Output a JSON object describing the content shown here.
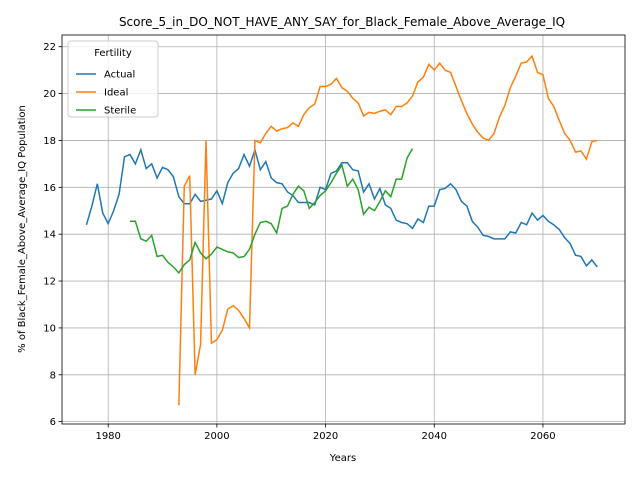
{
  "chart_data": {
    "type": "line",
    "title": "Score_5_in_DO_NOT_HAVE_ANY_SAY_for_Black_Female_Above_Average_IQ",
    "xlabel": "Years",
    "ylabel": "% of Black_Female_Above_Average_IQ Population",
    "legend_title": "Fertility",
    "legend": "upper left",
    "grid": true,
    "xlim": [
      1971.5,
      2075.1
    ],
    "ylim": [
      5.9,
      22.5
    ],
    "xticks": [
      1980,
      2000,
      2020,
      2040,
      2060
    ],
    "yticks": [
      6,
      8,
      10,
      12,
      14,
      16,
      18,
      20,
      22
    ],
    "x": [
      1976,
      1977,
      1978,
      1979,
      1980,
      1981,
      1982,
      1983,
      1984,
      1985,
      1986,
      1987,
      1988,
      1989,
      1990,
      1991,
      1992,
      1993,
      1994,
      1995,
      1996,
      1997,
      1998,
      1999,
      2000,
      2001,
      2002,
      2003,
      2004,
      2005,
      2006,
      2007,
      2008,
      2009,
      2010,
      2011,
      2012,
      2013,
      2014,
      2015,
      2016,
      2017,
      2018,
      2019,
      2020,
      2021,
      2022,
      2023,
      2024,
      2025,
      2026,
      2027,
      2028,
      2029,
      2030,
      2031,
      2032,
      2033,
      2034,
      2035,
      2036,
      2037,
      2038,
      2039,
      2040,
      2041,
      2042,
      2043,
      2044,
      2045,
      2046,
      2047,
      2048,
      2049,
      2050,
      2051,
      2052,
      2053,
      2054,
      2055,
      2056,
      2057,
      2058,
      2059,
      2060,
      2061,
      2062,
      2063,
      2064,
      2065,
      2066,
      2067,
      2068,
      2069,
      2070
    ],
    "series": [
      {
        "name": "Actual",
        "color": "#1f77b4",
        "values": [
          14.4,
          15.2,
          16.15,
          14.9,
          14.45,
          15.0,
          15.7,
          17.3,
          17.4,
          17.0,
          17.6,
          16.8,
          17.0,
          16.4,
          16.85,
          16.75,
          16.45,
          15.6,
          15.3,
          15.3,
          15.7,
          15.4,
          15.45,
          15.5,
          15.85,
          15.3,
          16.2,
          16.6,
          16.8,
          17.4,
          16.9,
          17.6,
          16.75,
          17.1,
          16.4,
          16.2,
          16.15,
          15.8,
          15.65,
          15.35,
          15.35,
          15.35,
          15.25,
          16.0,
          15.9,
          16.6,
          16.7,
          17.05,
          17.05,
          16.75,
          16.7,
          15.8,
          16.15,
          15.5,
          15.95,
          15.25,
          15.1,
          14.6,
          14.5,
          14.45,
          14.25,
          14.65,
          14.5,
          15.2,
          15.2,
          15.9,
          15.95,
          16.15,
          15.9,
          15.4,
          15.2,
          14.55,
          14.3,
          13.95,
          13.9,
          13.8,
          13.8,
          13.8,
          14.1,
          14.05,
          14.5,
          14.4,
          14.9,
          14.6,
          14.8,
          14.55,
          14.4,
          14.2,
          13.85,
          13.6,
          13.1,
          13.05,
          12.65,
          12.9,
          12.6
        ]
      },
      {
        "name": "Ideal",
        "color": "#ff7f0e",
        "values": [
          null,
          null,
          null,
          null,
          null,
          null,
          null,
          null,
          null,
          null,
          null,
          null,
          null,
          null,
          null,
          null,
          null,
          6.7,
          16.05,
          16.5,
          8.0,
          9.3,
          18.0,
          9.35,
          9.5,
          9.9,
          10.8,
          10.95,
          10.75,
          10.4,
          10.0,
          18.0,
          17.9,
          18.3,
          18.6,
          18.4,
          18.5,
          18.55,
          18.75,
          18.6,
          19.1,
          19.4,
          19.55,
          20.3,
          20.3,
          20.4,
          20.65,
          20.25,
          20.1,
          19.8,
          19.6,
          19.05,
          19.2,
          19.15,
          19.25,
          19.3,
          19.1,
          19.45,
          19.45,
          19.6,
          19.9,
          20.5,
          20.7,
          21.25,
          21.0,
          21.3,
          21.0,
          20.9,
          20.3,
          19.7,
          19.15,
          18.7,
          18.35,
          18.1,
          18.0,
          18.3,
          19.0,
          19.5,
          20.25,
          20.75,
          21.3,
          21.35,
          21.6,
          20.9,
          20.8,
          19.8,
          19.45,
          18.85,
          18.3,
          18.0,
          17.5,
          17.55,
          17.2,
          17.95,
          18.0
        ]
      },
      {
        "name": "Sterile",
        "color": "#2ca02c",
        "values": [
          null,
          null,
          null,
          null,
          null,
          null,
          null,
          null,
          14.55,
          14.55,
          13.8,
          13.7,
          13.95,
          13.05,
          13.1,
          12.8,
          12.6,
          12.35,
          12.7,
          12.9,
          13.65,
          13.2,
          12.95,
          13.15,
          13.45,
          13.35,
          13.25,
          13.2,
          13.0,
          13.05,
          13.35,
          14.0,
          14.5,
          14.55,
          14.45,
          14.05,
          15.1,
          15.2,
          15.7,
          16.05,
          15.85,
          15.1,
          15.35,
          15.65,
          15.85,
          16.2,
          16.6,
          16.95,
          16.05,
          16.35,
          15.9,
          14.85,
          15.15,
          15.0,
          15.4,
          15.85,
          15.6,
          16.35,
          16.35,
          17.25,
          17.65,
          null,
          null,
          null,
          null,
          null,
          null,
          null,
          null,
          null,
          null,
          null,
          null,
          null,
          null,
          null,
          null,
          null,
          null,
          null,
          null,
          null,
          null,
          null,
          null,
          null,
          null,
          null,
          null,
          null,
          null,
          null,
          null,
          null,
          null
        ]
      }
    ]
  }
}
